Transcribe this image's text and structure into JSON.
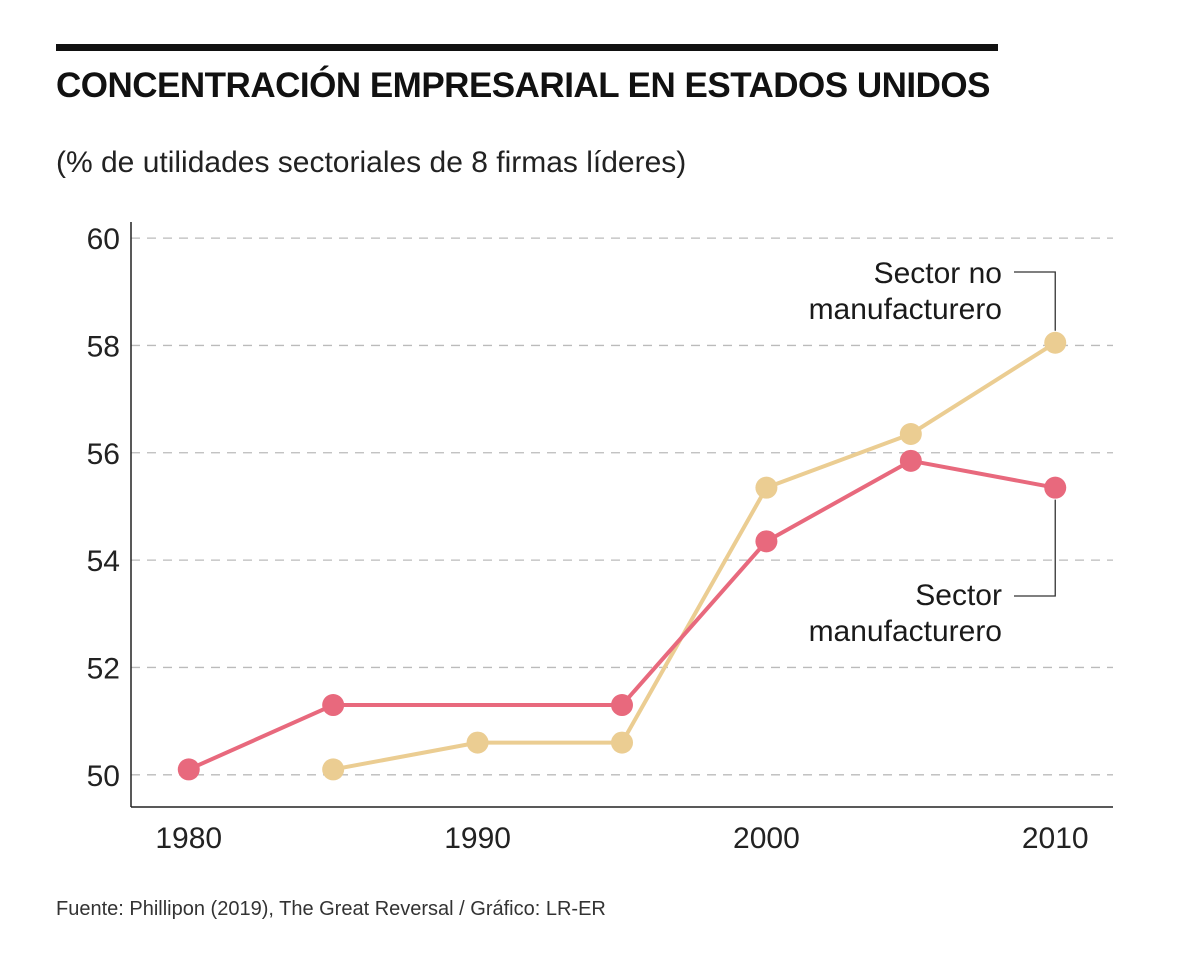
{
  "header": {
    "title": "CONCENTRACIÓN EMPRESARIAL EN ESTADOS UNIDOS",
    "subtitle": "(% de utilidades sectoriales de 8 firmas líderes)"
  },
  "footer": {
    "source": "Fuente: Phillipon (2019), The Great Reversal / Gráfico: LR-ER"
  },
  "colors": {
    "manufacturing": "#e8697d",
    "non_manufacturing": "#ebcd92",
    "grid": "#bbbbbb",
    "axis": "#222222"
  },
  "chart_data": {
    "type": "line",
    "title": "CONCENTRACIÓN EMPRESARIAL EN ESTADOS UNIDOS",
    "subtitle": "(% de utilidades sectoriales de 8 firmas líderes)",
    "xlabel": "",
    "ylabel": "",
    "xlim": [
      1978,
      2012
    ],
    "ylim": [
      49.4,
      60.3
    ],
    "xticks": [
      1980,
      1990,
      2000,
      2010
    ],
    "yticks": [
      50,
      52,
      54,
      56,
      58,
      60
    ],
    "grid": true,
    "series": [
      {
        "name": "Sector manufacturero",
        "label_lines": [
          "Sector",
          "manufacturero"
        ],
        "color_key": "manufacturing",
        "x": [
          1980,
          1985,
          1995,
          2000,
          2005,
          2010
        ],
        "values": [
          50.1,
          51.3,
          51.3,
          54.35,
          55.85,
          55.35
        ]
      },
      {
        "name": "Sector no manufacturero",
        "label_lines": [
          "Sector no",
          "manufacturero"
        ],
        "color_key": "non_manufacturing",
        "x": [
          1985,
          1990,
          1995,
          2000,
          2005,
          2010
        ],
        "values": [
          50.1,
          50.6,
          50.6,
          55.35,
          56.35,
          58.05
        ]
      }
    ]
  }
}
